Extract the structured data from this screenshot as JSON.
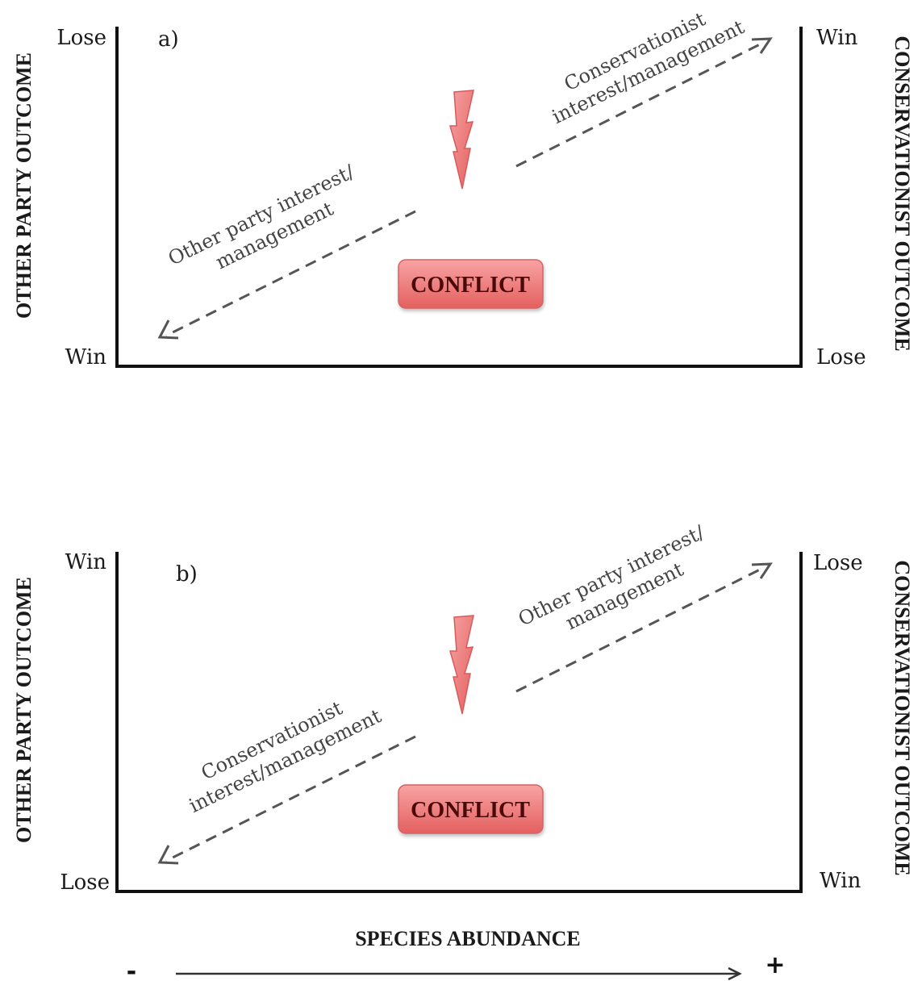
{
  "panels": [
    {
      "letter": "a)",
      "left_top": "Lose",
      "left_bottom": "Win",
      "right_top": "Win",
      "right_bottom": "Lose",
      "up_arrow_label": [
        "Conservationist",
        "interest/management"
      ],
      "down_arrow_label": [
        "Other party interest/",
        "management"
      ],
      "conflict_label": "CONFLICT"
    },
    {
      "letter": "b)",
      "left_top": "Win",
      "left_bottom": "Lose",
      "right_top": "Lose",
      "right_bottom": "Win",
      "up_arrow_label": [
        "Other party interest/",
        "management"
      ],
      "down_arrow_label": [
        "Conservationist",
        "interest/management"
      ],
      "conflict_label": "CONFLICT"
    }
  ],
  "left_axis_title": "OTHER PARTY OUTCOME",
  "right_axis_title": "CONSERVATIONIST OUTCOME",
  "x_axis_title": "SPECIES ABUNDANCE",
  "x_axis_minus": "-",
  "x_axis_plus": "+",
  "colors": {
    "conflict_fill_top": "#f7a3a3",
    "conflict_fill_bottom": "#e4605f",
    "bolt_fill": "#ef7b7b",
    "arrow_color": "#555555"
  },
  "icons": [
    "lightning-bolt-icon",
    "dashed-arrow-icon"
  ]
}
